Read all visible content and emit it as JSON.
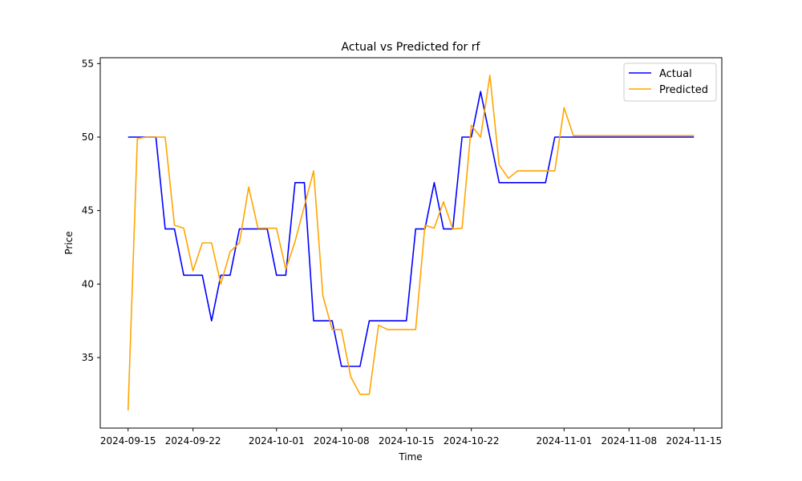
{
  "chart_data": {
    "type": "line",
    "title": "Actual vs Predicted for rf",
    "xlabel": "Time",
    "ylabel": "Price",
    "x_start": "2024-09-15",
    "x": [
      "2024-09-15",
      "2024-09-16",
      "2024-09-17",
      "2024-09-18",
      "2024-09-19",
      "2024-09-20",
      "2024-09-21",
      "2024-09-22",
      "2024-09-23",
      "2024-09-24",
      "2024-09-25",
      "2024-09-26",
      "2024-09-27",
      "2024-09-28",
      "2024-09-29",
      "2024-09-30",
      "2024-10-01",
      "2024-10-02",
      "2024-10-03",
      "2024-10-04",
      "2024-10-05",
      "2024-10-06",
      "2024-10-07",
      "2024-10-08",
      "2024-10-09",
      "2024-10-10",
      "2024-10-11",
      "2024-10-12",
      "2024-10-13",
      "2024-10-14",
      "2024-10-15",
      "2024-10-16",
      "2024-10-17",
      "2024-10-18",
      "2024-10-19",
      "2024-10-20",
      "2024-10-21",
      "2024-10-22",
      "2024-10-23",
      "2024-10-24",
      "2024-10-25",
      "2024-10-26",
      "2024-10-27",
      "2024-10-28",
      "2024-10-29",
      "2024-10-30",
      "2024-10-31",
      "2024-11-01",
      "2024-11-02",
      "2024-11-03",
      "2024-11-04",
      "2024-11-05",
      "2024-11-06",
      "2024-11-07",
      "2024-11-08",
      "2024-11-09",
      "2024-11-10",
      "2024-11-11",
      "2024-11-12",
      "2024-11-13",
      "2024-11-14",
      "2024-11-15"
    ],
    "series": [
      {
        "name": "Actual",
        "color": "#0000ff",
        "values": [
          50.0,
          50.0,
          50.0,
          50.0,
          43.75,
          43.75,
          40.6,
          40.6,
          40.6,
          37.5,
          40.6,
          40.6,
          43.75,
          43.75,
          43.75,
          43.75,
          40.6,
          40.6,
          46.9,
          46.9,
          37.5,
          37.5,
          37.5,
          34.4,
          34.4,
          34.4,
          37.5,
          37.5,
          37.5,
          37.5,
          37.5,
          43.75,
          43.75,
          46.9,
          43.75,
          43.75,
          50.0,
          50.0,
          53.1,
          50.0,
          46.9,
          46.9,
          46.9,
          46.9,
          46.9,
          46.9,
          50.0,
          50.0,
          50.0,
          50.0,
          50.0,
          50.0,
          50.0,
          50.0,
          50.0,
          50.0,
          50.0,
          50.0,
          50.0,
          50.0,
          50.0,
          50.0
        ]
      },
      {
        "name": "Predicted",
        "color": "#ffa500",
        "values": [
          31.4,
          49.9,
          50.0,
          50.0,
          50.0,
          44.0,
          43.8,
          40.9,
          42.8,
          42.8,
          40.0,
          42.2,
          42.8,
          46.6,
          43.8,
          43.8,
          43.8,
          41.0,
          42.9,
          45.3,
          47.7,
          39.2,
          36.9,
          36.9,
          33.7,
          32.5,
          32.5,
          37.2,
          36.9,
          36.9,
          36.9,
          36.9,
          44.0,
          43.8,
          45.6,
          43.75,
          43.8,
          50.8,
          50.0,
          54.2,
          48.1,
          47.2,
          47.7,
          47.7,
          47.7,
          47.7,
          47.7,
          52.0,
          50.1,
          50.1,
          50.1,
          50.1,
          50.1,
          50.1,
          50.1,
          50.1,
          50.1,
          50.1,
          50.1,
          50.1,
          50.1,
          50.1
        ]
      }
    ],
    "x_ticks": [
      "2024-09-15",
      "2024-09-22",
      "2024-10-01",
      "2024-10-08",
      "2024-10-15",
      "2024-10-22",
      "2024-11-01",
      "2024-11-08",
      "2024-11-15"
    ],
    "x_tick_days": [
      0,
      7,
      16,
      23,
      30,
      37,
      47,
      54,
      61
    ],
    "y_ticks": [
      35,
      40,
      45,
      50,
      55
    ],
    "xlim_days": [
      -3,
      64
    ],
    "ylim": [
      30.2,
      55.4
    ],
    "grid": false,
    "legend_position": "upper right"
  }
}
